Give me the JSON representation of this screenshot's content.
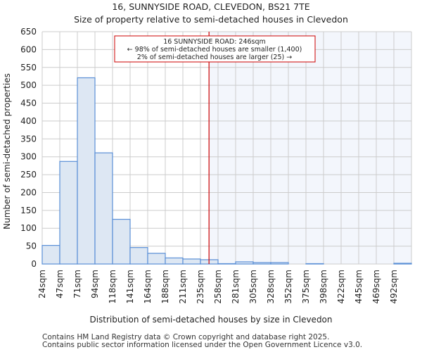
{
  "chart_data": {
    "type": "bar",
    "title": "16, SUNNYSIDE ROAD, CLEVEDON, BS21 7TE",
    "subtitle": "Size of property relative to semi-detached houses in Clevedon",
    "xlabel": "Distribution of semi-detached houses by size in Clevedon",
    "ylabel": "Number of semi-detached properties",
    "categories": [
      "24sqm",
      "47sqm",
      "71sqm",
      "94sqm",
      "118sqm",
      "141sqm",
      "164sqm",
      "188sqm",
      "211sqm",
      "235sqm",
      "258sqm",
      "281sqm",
      "305sqm",
      "328sqm",
      "352sqm",
      "375sqm",
      "398sqm",
      "422sqm",
      "445sqm",
      "469sqm",
      "492sqm"
    ],
    "bin_starts": [
      24,
      47,
      71,
      94,
      118,
      141,
      164,
      188,
      211,
      235,
      258,
      281,
      305,
      328,
      352,
      375,
      398,
      422,
      445,
      469,
      492
    ],
    "bin_width": 23.4,
    "values": [
      52,
      287,
      521,
      311,
      125,
      46,
      30,
      17,
      14,
      12,
      1,
      6,
      4,
      4,
      0,
      1,
      0,
      0,
      0,
      0,
      2
    ],
    "ylim": [
      0,
      650
    ],
    "yticks": [
      0,
      50,
      100,
      150,
      200,
      250,
      300,
      350,
      400,
      450,
      500,
      550,
      600,
      650
    ],
    "grid": true,
    "marker_value": 246,
    "annotation": {
      "line1": "16 SUNNYSIDE ROAD: 246sqm",
      "line2": "← 98% of semi-detached houses are smaller (1,400)",
      "line3": "2% of semi-detached houses are larger (25) →"
    },
    "colors": {
      "bar_fill": "#dde7f3",
      "bar_stroke": "#5a8fd6",
      "marker": "#cc0000",
      "shade": "#f3f6fc",
      "grid": "#cccccc"
    }
  },
  "footer": {
    "line1": "Contains HM Land Registry data © Crown copyright and database right 2025.",
    "line2": "Contains public sector information licensed under the Open Government Licence v3.0."
  }
}
